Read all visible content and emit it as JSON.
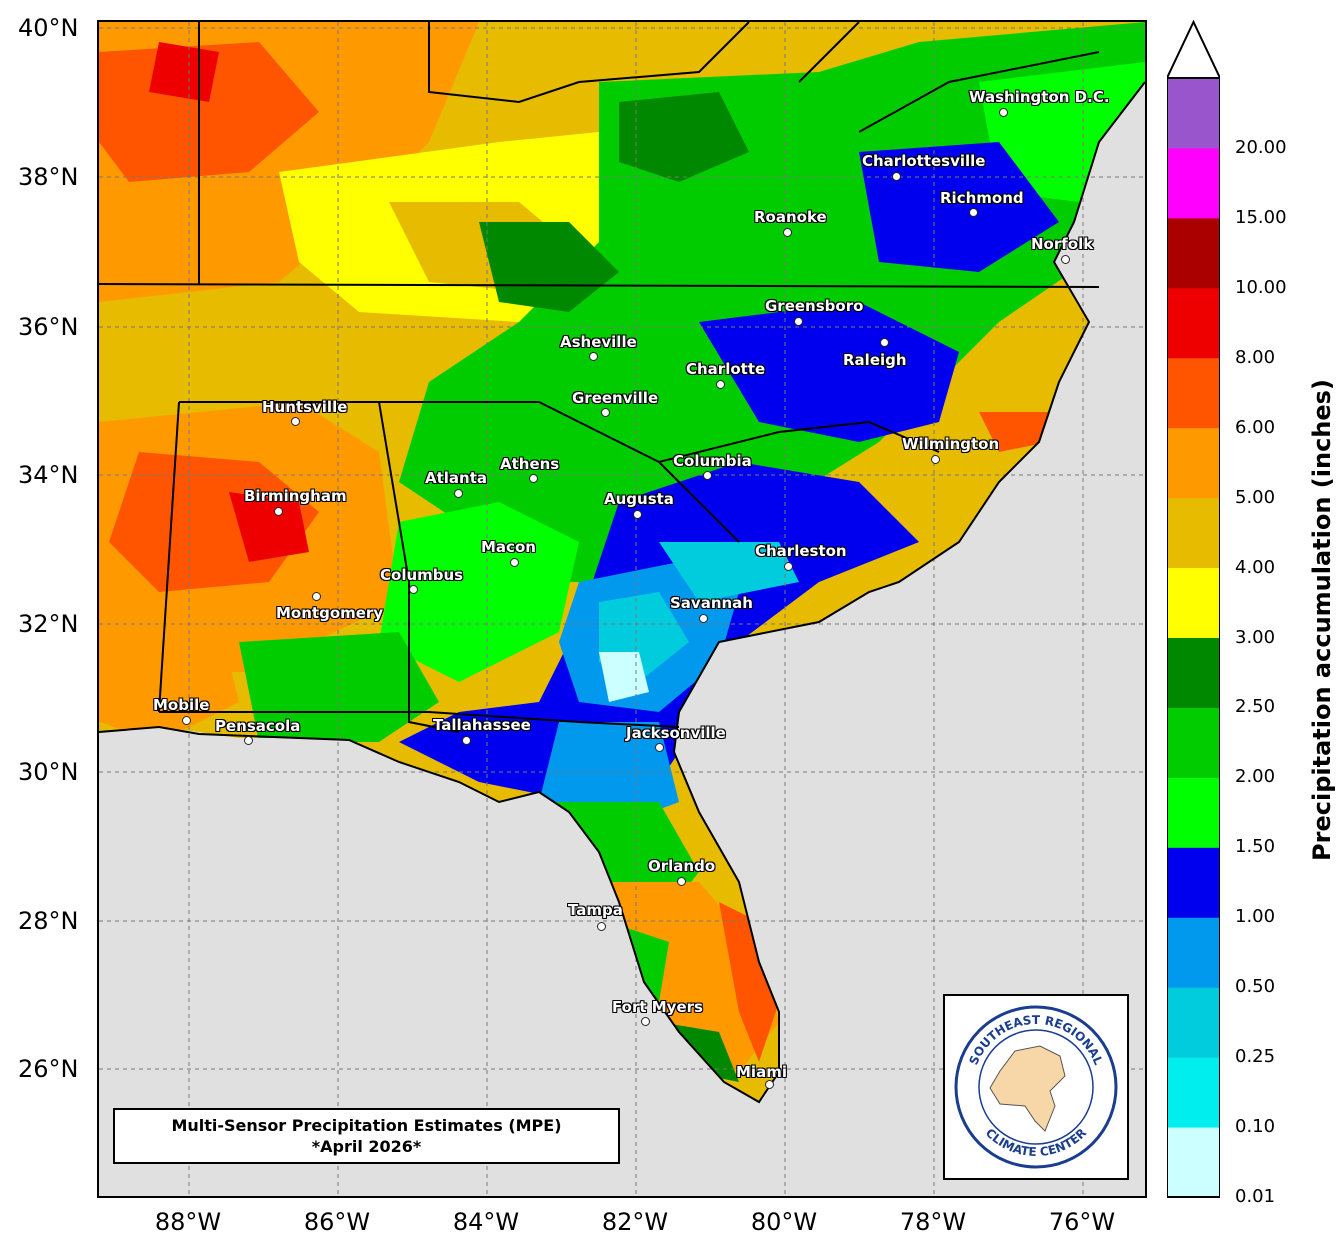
{
  "map": {
    "title_line1": "Multi-Sensor Precipitation Estimates (MPE)",
    "title_line2": "*April 2026*",
    "lat_labels": [
      "40°N",
      "38°N",
      "36°N",
      "34°N",
      "32°N",
      "30°N",
      "28°N",
      "26°N"
    ],
    "lon_labels": [
      "88°W",
      "86°W",
      "84°W",
      "82°W",
      "80°W",
      "78°W",
      "76°W"
    ],
    "cities": [
      {
        "name": "Washington D.C."
      },
      {
        "name": "Charlottesville"
      },
      {
        "name": "Richmond"
      },
      {
        "name": "Roanoke"
      },
      {
        "name": "Norfolk"
      },
      {
        "name": "Greensboro"
      },
      {
        "name": "Raleigh"
      },
      {
        "name": "Asheville"
      },
      {
        "name": "Charlotte"
      },
      {
        "name": "Greenville"
      },
      {
        "name": "Huntsville"
      },
      {
        "name": "Wilmington"
      },
      {
        "name": "Columbia"
      },
      {
        "name": "Athens"
      },
      {
        "name": "Atlanta"
      },
      {
        "name": "Birmingham"
      },
      {
        "name": "Augusta"
      },
      {
        "name": "Charleston"
      },
      {
        "name": "Macon"
      },
      {
        "name": "Columbus"
      },
      {
        "name": "Montgomery"
      },
      {
        "name": "Savannah"
      },
      {
        "name": "Mobile"
      },
      {
        "name": "Pensacola"
      },
      {
        "name": "Tallahassee"
      },
      {
        "name": "Jacksonville"
      },
      {
        "name": "Orlando"
      },
      {
        "name": "Tampa"
      },
      {
        "name": "Fort Myers"
      },
      {
        "name": "Miami"
      }
    ],
    "logo": {
      "text_top": "SOUTHEAST REGIONAL",
      "text_bottom": "CLIMATE CENTER"
    }
  },
  "colorbar": {
    "title": "Precipitation accumulation (inches)",
    "ticks": [
      "0.01",
      "0.10",
      "0.25",
      "0.50",
      "1.00",
      "1.50",
      "2.00",
      "2.50",
      "3.00",
      "4.00",
      "5.00",
      "6.00",
      "8.00",
      "10.00",
      "15.00",
      "20.00"
    ],
    "colors": [
      "#ccffff",
      "#00eeee",
      "#00ccdd",
      "#0099ee",
      "#0000ee",
      "#00ff00",
      "#00cc00",
      "#008800",
      "#ffff00",
      "#e6bb00",
      "#ff9900",
      "#ff5500",
      "#ee0000",
      "#aa0000",
      "#ff00ff",
      "#9955cc"
    ],
    "extend_color": "#ffffff",
    "ocean_color": "#e0e0e0"
  }
}
